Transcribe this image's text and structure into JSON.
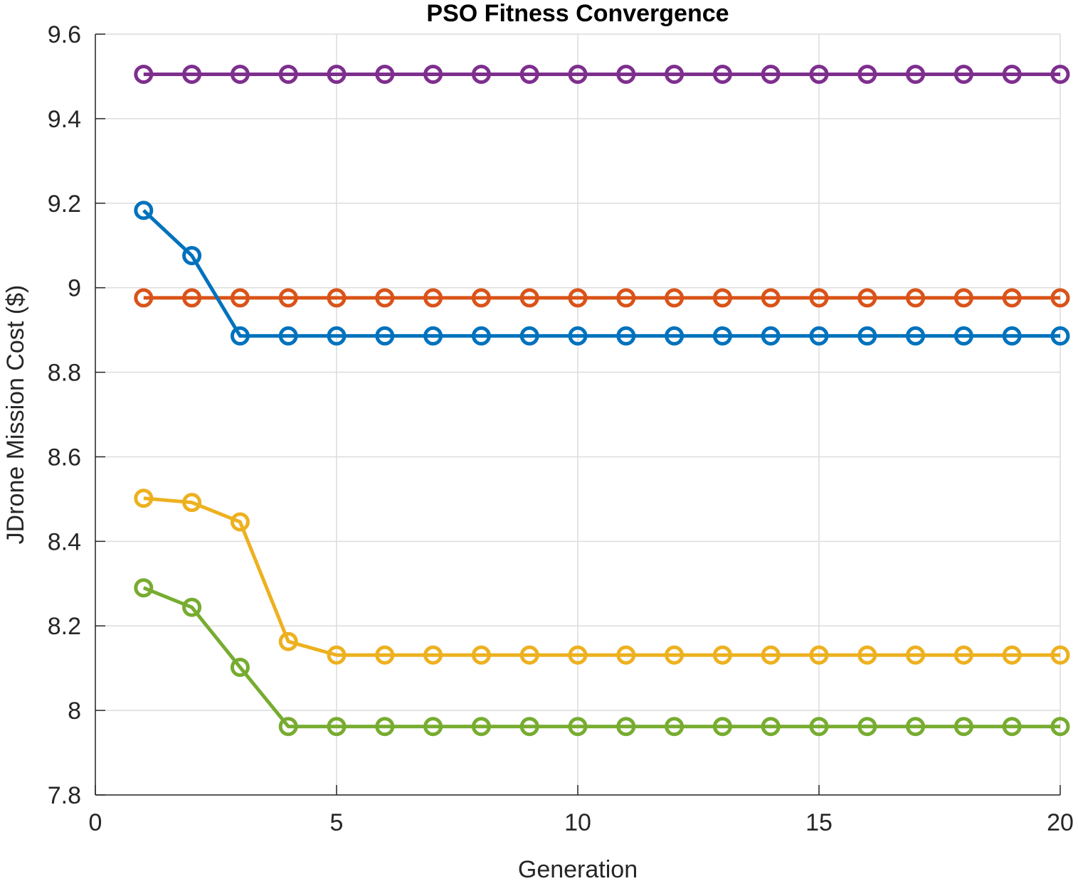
{
  "chart_data": {
    "type": "line",
    "title": "PSO Fitness Convergence",
    "xlabel": "Generation",
    "ylabel": "JDrone Mission Cost ($)",
    "xlim": [
      0,
      20
    ],
    "ylim": [
      7.8,
      9.6
    ],
    "xticks": [
      0,
      5,
      10,
      15,
      20
    ],
    "yticks": [
      7.8,
      8,
      8.2,
      8.4,
      8.6,
      8.8,
      9,
      9.2,
      9.4,
      9.6
    ],
    "xtick_labels": [
      "0",
      "5",
      "10",
      "15",
      "20"
    ],
    "ytick_labels": [
      "7.8",
      "8",
      "8.2",
      "8.4",
      "8.6",
      "8.8",
      "9",
      "9.2",
      "9.4",
      "9.6"
    ],
    "grid": true,
    "marker": "circle",
    "x": [
      1,
      2,
      3,
      4,
      5,
      6,
      7,
      8,
      9,
      10,
      11,
      12,
      13,
      14,
      15,
      16,
      17,
      18,
      19,
      20
    ],
    "series": [
      {
        "color": "#7E2F8E",
        "values": [
          9.505,
          9.505,
          9.505,
          9.505,
          9.505,
          9.505,
          9.505,
          9.505,
          9.505,
          9.505,
          9.505,
          9.505,
          9.505,
          9.505,
          9.505,
          9.505,
          9.505,
          9.505,
          9.505,
          9.505
        ]
      },
      {
        "color": "#D95319",
        "values": [
          8.976,
          8.976,
          8.976,
          8.976,
          8.976,
          8.976,
          8.976,
          8.976,
          8.976,
          8.976,
          8.976,
          8.976,
          8.976,
          8.976,
          8.976,
          8.976,
          8.976,
          8.976,
          8.976,
          8.976
        ]
      },
      {
        "color": "#0072BD",
        "values": [
          9.183,
          9.076,
          8.886,
          8.886,
          8.886,
          8.886,
          8.886,
          8.886,
          8.886,
          8.886,
          8.886,
          8.886,
          8.886,
          8.886,
          8.886,
          8.886,
          8.886,
          8.886,
          8.886,
          8.886
        ]
      },
      {
        "color": "#EDB120",
        "values": [
          8.502,
          8.492,
          8.446,
          8.163,
          8.131,
          8.131,
          8.131,
          8.131,
          8.131,
          8.131,
          8.131,
          8.131,
          8.131,
          8.131,
          8.131,
          8.131,
          8.131,
          8.131,
          8.131,
          8.131
        ]
      },
      {
        "color": "#77AC30",
        "values": [
          8.29,
          8.244,
          8.102,
          7.962,
          7.962,
          7.962,
          7.962,
          7.962,
          7.962,
          7.962,
          7.962,
          7.962,
          7.962,
          7.962,
          7.962,
          7.962,
          7.962,
          7.962,
          7.962,
          7.962
        ]
      }
    ]
  }
}
